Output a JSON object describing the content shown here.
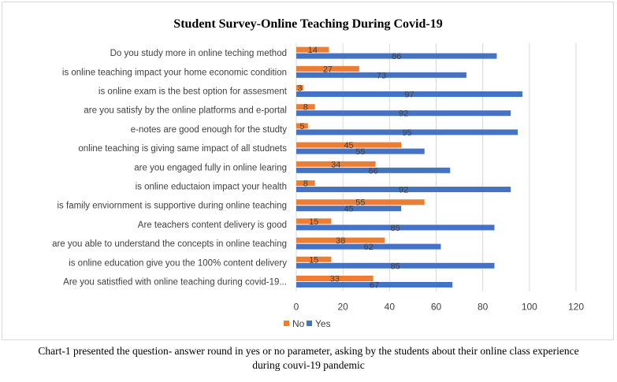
{
  "chart_data": {
    "type": "bar",
    "orientation": "horizontal",
    "title": "Student Survey-Online Teaching During Covid-19",
    "categories": [
      "Do you study more in online teching method",
      "is online teaching impact your home economic condition",
      "is online exam is the best option for assesment",
      "are you satisfy by the online platforms and e-portal",
      "e-notes are good enough for the studty",
      "online teaching is giving same impact of all studnets",
      "are you engaged fully in online learing",
      "is online eductaion impact your health",
      "is family enviornment is supportive during online teaching",
      "Are teachers content delivery is good",
      "are you able to understand the concepts in online teaching",
      "is online education give you the 100% content delivery",
      "Are you satistfied with online teaching during covid-19..."
    ],
    "series": [
      {
        "name": "No",
        "color": "#ed7d31",
        "values": [
          14,
          27,
          3,
          8,
          5,
          45,
          34,
          8,
          55,
          15,
          38,
          15,
          33
        ]
      },
      {
        "name": "Yes",
        "color": "#4472c4",
        "values": [
          86,
          73,
          97,
          92,
          95,
          55,
          66,
          92,
          45,
          85,
          62,
          85,
          67
        ]
      }
    ],
    "xlim": [
      0,
      120
    ],
    "xticks": [
      "0",
      "20",
      "40",
      "60",
      "80",
      "100",
      "120"
    ],
    "grid": true,
    "legend": "bottom"
  },
  "caption": {
    "line1": "Chart-1 presented the question- answer round in yes or no parameter, asking by the students about their online class experience",
    "line2": "during couvi-19 pandemic"
  }
}
